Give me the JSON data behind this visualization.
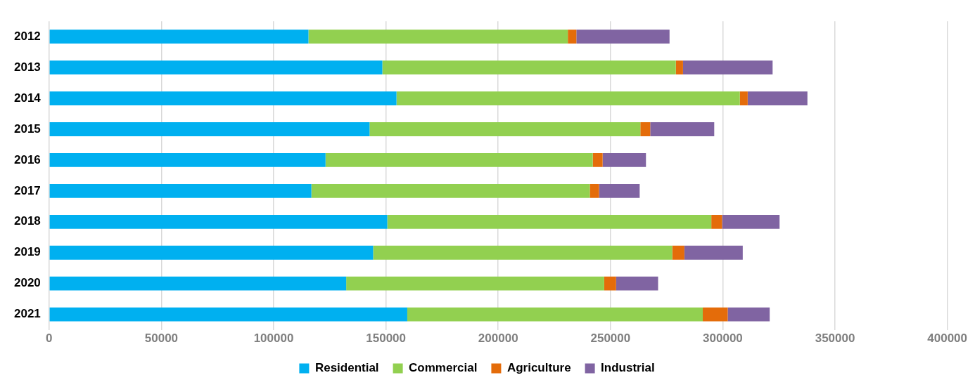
{
  "chart_data": {
    "type": "bar",
    "orientation": "horizontal",
    "stacked": true,
    "categories": [
      "2012",
      "2013",
      "2014",
      "2015",
      "2016",
      "2017",
      "2018",
      "2019",
      "2020",
      "2021"
    ],
    "series": [
      {
        "name": "Residential",
        "color": "#00b0f0",
        "values": [
          115500,
          148400,
          154700,
          142700,
          123100,
          116800,
          150600,
          144300,
          132300,
          159500
        ]
      },
      {
        "name": "Commercial",
        "color": "#92d050",
        "values": [
          115500,
          130700,
          152900,
          120600,
          119000,
          124000,
          144300,
          133200,
          114900,
          131600
        ]
      },
      {
        "name": "Agriculture",
        "color": "#e46c0a",
        "values": [
          3800,
          3200,
          3500,
          4400,
          4400,
          4100,
          4800,
          5400,
          5300,
          11100
        ]
      },
      {
        "name": "Industrial",
        "color": "#8064a2",
        "values": [
          41500,
          39900,
          26600,
          28500,
          19300,
          18100,
          25600,
          26000,
          18700,
          18700
        ]
      }
    ],
    "xlim": [
      0,
      400000
    ],
    "xticks": [
      0,
      50000,
      100000,
      150000,
      200000,
      250000,
      300000,
      350000,
      400000
    ],
    "grid": "x",
    "legend": "bottom"
  }
}
